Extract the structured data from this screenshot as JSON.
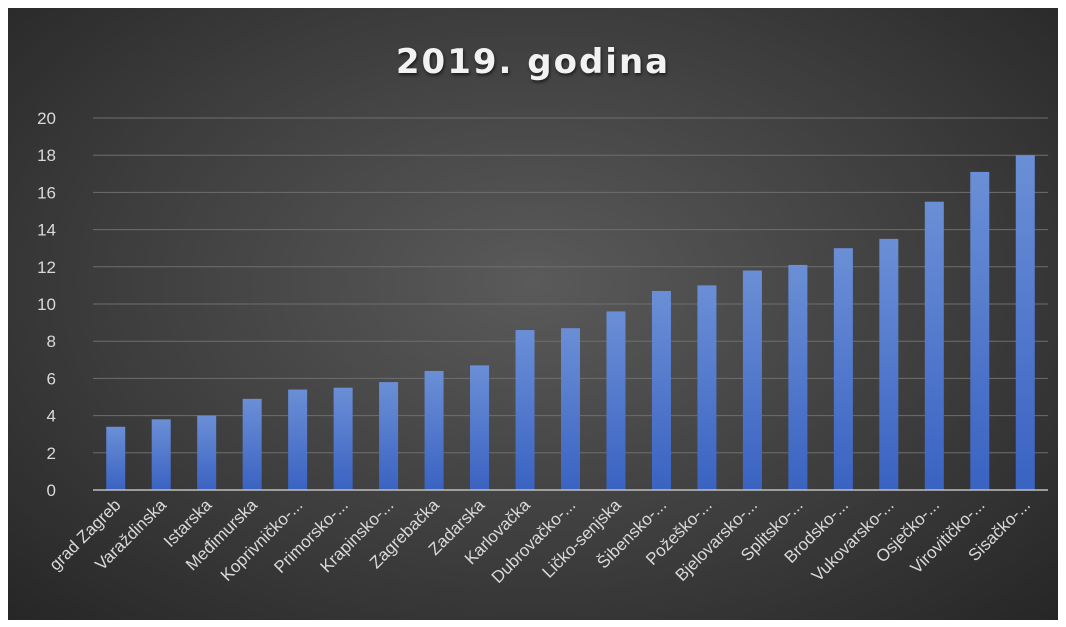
{
  "chart_data": {
    "type": "bar",
    "title": "2019. godina",
    "xlabel": "",
    "ylabel": "",
    "ylim": [
      0,
      20
    ],
    "yticks": [
      0,
      2,
      4,
      6,
      8,
      10,
      12,
      14,
      16,
      18,
      20
    ],
    "grid": true,
    "legend": "none",
    "bar_color_top": "#6b8fd6",
    "bar_color_bottom": "#3a63c2",
    "categories": [
      "grad Zagreb",
      "Varaždinska",
      "Istarska",
      "Međimurska",
      "Koprivničko-...",
      "Primorsko-...",
      "Krapinsko-...",
      "Zagrebačka",
      "Zadarska",
      "Karlovačka",
      "Dubrovačko-...",
      "Ličko-senjska",
      "Šibensko-...",
      "Požeško-...",
      "Bjelovarsko-...",
      "Splitsko-...",
      "Brodsko-...",
      "Vukovarsko-...",
      "Osječko-...",
      "Virovitičko-...",
      "Sisačko-..."
    ],
    "values": [
      3.4,
      3.8,
      4.0,
      4.9,
      5.4,
      5.5,
      5.8,
      6.4,
      6.7,
      8.6,
      8.7,
      9.6,
      10.7,
      11.0,
      11.8,
      12.1,
      13.0,
      13.5,
      15.5,
      17.1,
      18.0
    ]
  }
}
